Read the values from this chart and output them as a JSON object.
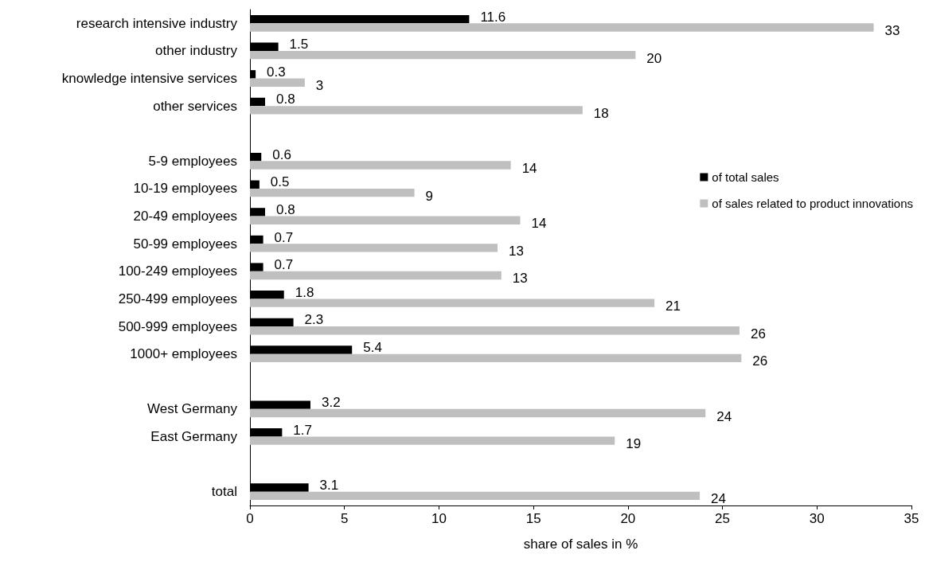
{
  "chart_data": {
    "type": "bar",
    "orientation": "horizontal",
    "xlabel": "share of sales in %",
    "categories": [
      "research intensive industry",
      "other industry",
      "knowledge intensive services",
      "other services",
      null,
      "5-9 employees",
      "10-19 employees",
      "20-49 employees",
      "50-99 employees",
      "100-249 employees",
      "250-499 employees",
      "500-999 employees",
      "1000+ employees",
      null,
      "West Germany",
      "East Germany",
      null,
      "total"
    ],
    "series": [
      {
        "name": "of total sales",
        "color": "#000000",
        "values": [
          11.6,
          1.5,
          0.3,
          0.8,
          null,
          0.6,
          0.5,
          0.8,
          0.7,
          0.7,
          1.8,
          2.3,
          5.4,
          null,
          3.2,
          1.7,
          null,
          3.1
        ],
        "value_labels": [
          "11.6",
          "1.5",
          "0.3",
          "0.8",
          null,
          "0.6",
          "0.5",
          "0.8",
          "0.7",
          "0.7",
          "1.8",
          "2.3",
          "5.4",
          null,
          "3.2",
          "1.7",
          null,
          "3.1"
        ]
      },
      {
        "name": "of sales related to product innovations",
        "color": "#bfbfbf",
        "values": [
          33.0,
          20.4,
          2.9,
          17.6,
          null,
          13.8,
          8.7,
          14.3,
          13.1,
          13.3,
          21.4,
          25.9,
          26.0,
          null,
          24.1,
          19.3,
          null,
          23.8
        ],
        "value_labels": [
          "33",
          "20",
          "3",
          "18",
          null,
          "14",
          "9",
          "14",
          "13",
          "13",
          "21",
          "26",
          "26",
          null,
          "24",
          "19",
          null,
          "24"
        ]
      }
    ],
    "xlim": [
      0,
      35
    ],
    "xticks": [
      0,
      5,
      10,
      15,
      20,
      25,
      30,
      35
    ],
    "grid": false,
    "legend": "right"
  }
}
